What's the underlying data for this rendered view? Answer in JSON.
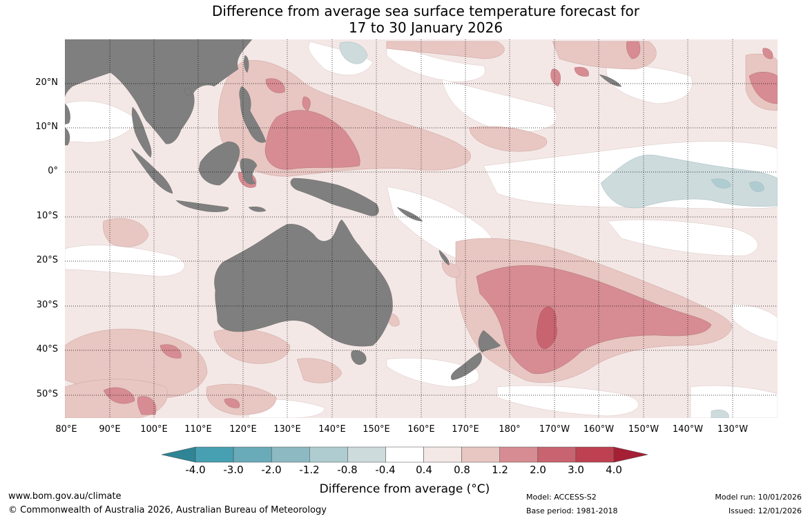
{
  "title_line1": "Difference from average sea surface temperature forecast for",
  "title_line2": "17 to 30 January 2026",
  "lat_labels": [
    "20°N",
    "10°N",
    "0°",
    "10°S",
    "20°S",
    "30°S",
    "40°S",
    "50°S"
  ],
  "lon_labels": [
    "80°E",
    "90°E",
    "100°E",
    "110°E",
    "120°E",
    "130°E",
    "140°E",
    "150°E",
    "160°E",
    "170°E",
    "180°",
    "170°W",
    "160°W",
    "150°W",
    "140°W",
    "130°W"
  ],
  "colorbar": {
    "ticks": [
      "-4.0",
      "-3.0",
      "-2.0",
      "-1.2",
      "-0.8",
      "-0.4",
      "0.4",
      "0.8",
      "1.2",
      "2.0",
      "3.0",
      "4.0"
    ],
    "colors": [
      "#2f8595",
      "#47a0b1",
      "#6aabb9",
      "#8cb9c2",
      "#afccd0",
      "#cddbdd",
      "#ffffff",
      "#f4e8e6",
      "#e8c6c2",
      "#d68c92",
      "#c86470",
      "#bd4150",
      "#a51f35"
    ],
    "title": "Difference from average (°C)"
  },
  "colors": {
    "land": "#7f7f7f",
    "anom_04": "#f4e8e6",
    "anom_08": "#e8c6c2",
    "anom_12": "#d68c92",
    "anom_20": "#c86470",
    "neg_04": "#cddbdd",
    "neg_08": "#afccd0"
  },
  "footer": {
    "url": "www.bom.gov.au/climate",
    "copyright": "© Commonwealth of Australia 2026, Australian Bureau of Meteorology",
    "model": "Model: ACCESS-S2",
    "base_period": "Base period: 1981-2018",
    "model_run": "Model run: 10/01/2026",
    "issued": "Issued: 12/01/2026"
  }
}
